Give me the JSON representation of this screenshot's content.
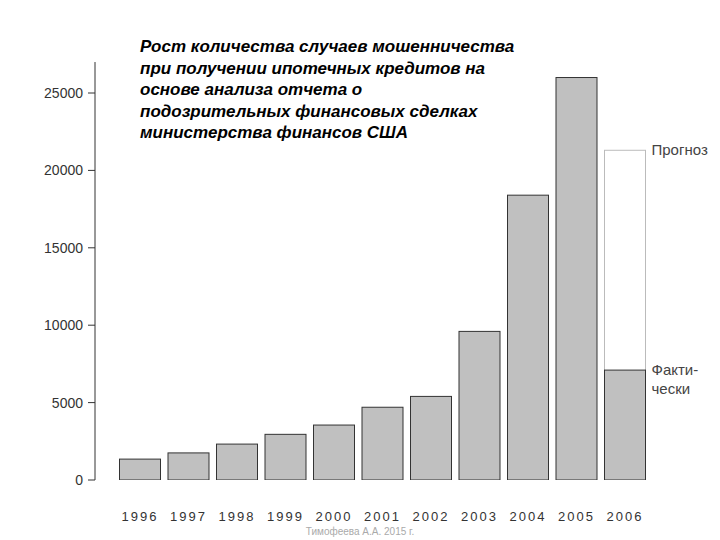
{
  "chart_data": {
    "type": "bar",
    "title": "Рост количества случаев мошенничества\nпри получении ипотечных кредитов на\nоснове анализа отчета о\nподозрительных финансовых сделках\nминистерства финансов США",
    "categories": [
      "1996",
      "1997",
      "1998",
      "1999",
      "2000",
      "2001",
      "2002",
      "2003",
      "2004",
      "2005",
      "2006"
    ],
    "series": [
      {
        "name": "Факти-\nчески",
        "color": "#c0c0c0",
        "values": [
          1350,
          1750,
          2320,
          2950,
          3550,
          4700,
          5400,
          9600,
          18400,
          26000,
          7100
        ]
      },
      {
        "name": "Прогноз",
        "color": "#ffffff",
        "values": [
          null,
          null,
          null,
          null,
          null,
          null,
          null,
          null,
          null,
          null,
          21300
        ]
      }
    ],
    "annotations": [
      "Тимофеева А.А. 2015 г."
    ],
    "ylim": [
      0,
      27000
    ],
    "yticks": [
      0,
      5000,
      10000,
      15000,
      20000,
      25000
    ],
    "grid": false
  }
}
